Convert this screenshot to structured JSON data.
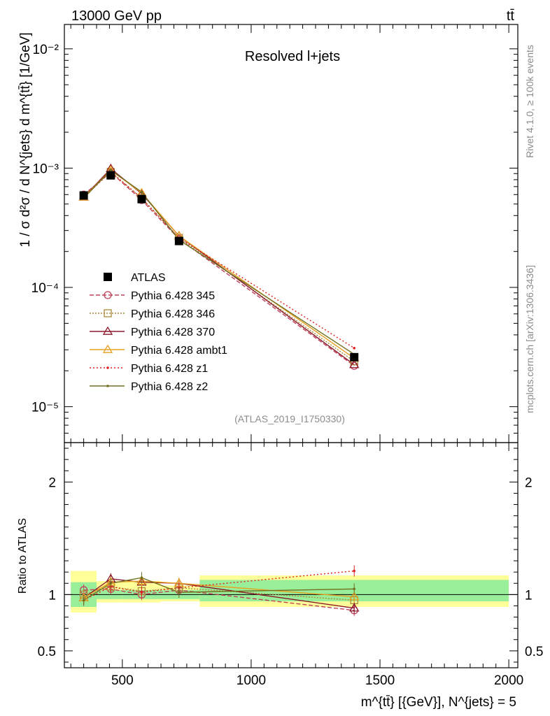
{
  "header": {
    "left_label": "13000 GeV pp",
    "right_label": "tt̄"
  },
  "side_labels": {
    "rivet": "Rivet 4.1.0, ≥ 100k events",
    "mcplots": "mcplots.cern.ch [arXiv:1306.3436]"
  },
  "chart_data": {
    "type": "line",
    "title": "Resolved l+jets",
    "watermark": "(ATLAS_2019_I1750330)",
    "ylabel": "1 / σ d²σ / d N^{jets} d m^{tt̄} [1/GeV]",
    "xlabel": "m^{tt̄} [{GeV}], N^{jets} = 5",
    "ratio_ylabel": "Ratio to ATLAS",
    "xlim": [
      275,
      2035
    ],
    "ylim": [
      5e-06,
      0.016
    ],
    "ratio_ylim": [
      0.35,
      2.35
    ],
    "x_ticks": [
      500,
      1000,
      1500,
      2000
    ],
    "x_tick_labels": [
      "500",
      "1000",
      "1500",
      "2000"
    ],
    "y_ticks": [
      1e-05,
      0.0001,
      0.001,
      0.01
    ],
    "y_tick_labels": [
      "10⁻⁵",
      "10⁻⁴",
      "10⁻³",
      "10⁻²"
    ],
    "ratio_ticks": [
      0.5,
      1,
      2
    ],
    "ratio_tick_labels": [
      "0.5",
      "1",
      "2"
    ],
    "bins": [
      [
        300,
        400
      ],
      [
        400,
        500
      ],
      [
        500,
        650
      ],
      [
        650,
        800
      ],
      [
        800,
        2000
      ]
    ],
    "x": [
      350,
      455,
      575,
      720,
      1400
    ],
    "data": {
      "name": "ATLAS",
      "values": [
        0.00059,
        0.00087,
        0.00055,
        0.000245,
        2.6e-05
      ],
      "band_inner": [
        [
          0.89,
          1.11
        ],
        [
          0.96,
          1.04
        ],
        [
          0.96,
          1.04
        ],
        [
          0.96,
          1.04
        ],
        [
          0.94,
          1.13
        ]
      ],
      "band_outer": [
        [
          0.84,
          1.21
        ],
        [
          0.93,
          1.12
        ],
        [
          0.93,
          1.12
        ],
        [
          0.94,
          1.08
        ],
        [
          0.89,
          1.17
        ]
      ]
    },
    "series": [
      {
        "name": "Pythia 6.428 345",
        "color": "#c0405a",
        "dash": "6,3",
        "marker": "circle",
        "values": [
          0.0006,
          0.00092,
          0.00054,
          0.000255,
          2.2e-05
        ],
        "ratio": [
          1.04,
          1.05,
          1.0,
          1.04,
          0.86
        ]
      },
      {
        "name": "Pythia 6.428 346",
        "color": "#a88a3a",
        "dash": "2,2",
        "marker": "square",
        "values": [
          0.00059,
          0.00093,
          0.00056,
          0.00026,
          2.4e-05
        ],
        "ratio": [
          1.0,
          1.07,
          1.03,
          1.06,
          0.95
        ]
      },
      {
        "name": "Pythia 6.428 370",
        "color": "#8b1a2c",
        "dash": "",
        "marker": "triangle",
        "values": [
          0.00057,
          0.00099,
          0.00061,
          0.00027,
          2.25e-05
        ],
        "ratio": [
          0.97,
          1.14,
          1.11,
          1.1,
          0.88
        ]
      },
      {
        "name": "Pythia 6.428 ambt1",
        "color": "#e8a020",
        "dash": "",
        "marker": "triangle",
        "values": [
          0.00057,
          0.00096,
          0.00062,
          0.00027,
          2.55e-05
        ],
        "ratio": [
          0.97,
          1.11,
          1.12,
          1.1,
          0.98
        ]
      },
      {
        "name": "Pythia 6.428 z1",
        "color": "#e02020",
        "dash": "2,3",
        "marker": "dot",
        "values": [
          0.00057,
          0.00093,
          0.00056,
          0.00026,
          3.1e-05
        ],
        "ratio": [
          0.95,
          1.07,
          1.02,
          1.06,
          1.21
        ]
      },
      {
        "name": "Pythia 6.428 z2",
        "color": "#707020",
        "dash": "",
        "marker": "dot",
        "values": [
          0.00056,
          0.00096,
          0.00063,
          0.00025,
          2.75e-05
        ],
        "ratio": [
          0.95,
          1.1,
          1.15,
          1.02,
          1.05
        ]
      }
    ]
  }
}
